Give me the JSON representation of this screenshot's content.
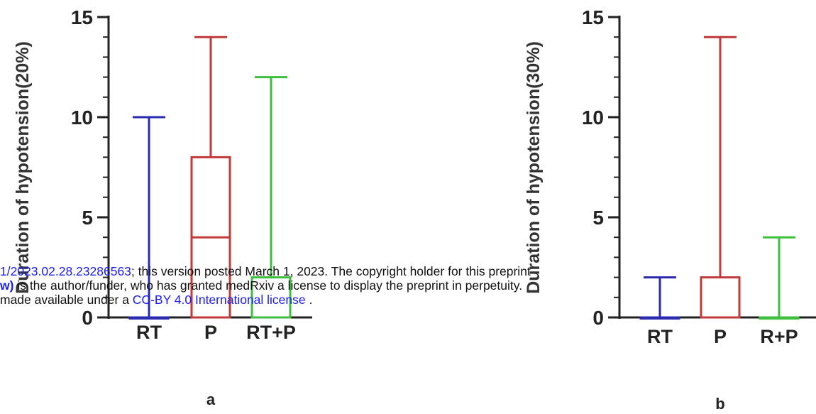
{
  "chart_data": [
    {
      "type": "box",
      "panel_label": "a",
      "ylabel": "Duration of hypotension(20%)",
      "ylim": [
        0,
        15
      ],
      "yticks": [
        0,
        5,
        10,
        15
      ],
      "categories": [
        "RT",
        "P",
        "RT+P"
      ],
      "boxes": [
        {
          "category": "RT",
          "color": "#2b2bb0",
          "min": 0,
          "q1": 0,
          "median": 0,
          "q3": 0,
          "max": 10
        },
        {
          "category": "P",
          "color": "#c03a3a",
          "min": 0,
          "q1": 0,
          "median": 4,
          "q3": 8,
          "max": 14
        },
        {
          "category": "RT+P",
          "color": "#3cbf3c",
          "min": 0,
          "q1": 0,
          "median": 0,
          "q3": 2,
          "max": 12
        }
      ]
    },
    {
      "type": "box",
      "panel_label": "b",
      "ylabel": "Duration of hypotension(30%)",
      "ylim": [
        0,
        15
      ],
      "yticks": [
        0,
        5,
        10,
        15
      ],
      "categories": [
        "RT",
        "P",
        "R+P"
      ],
      "boxes": [
        {
          "category": "RT",
          "color": "#2b2bb0",
          "min": 0,
          "q1": 0,
          "median": 0,
          "q3": 0,
          "max": 2
        },
        {
          "category": "P",
          "color": "#c03a3a",
          "min": 0,
          "q1": 0,
          "median": 0,
          "q3": 2,
          "max": 14
        },
        {
          "category": "R+P",
          "color": "#3cbf3c",
          "min": 0,
          "q1": 0,
          "median": 0,
          "q3": 0,
          "max": 4
        }
      ]
    }
  ],
  "stamp": {
    "line1_link": "1/2023.02.28.23286563",
    "line1_text": "; this version posted March 1, 2023. The copyright holder for this preprint",
    "line2_link": "w)",
    "line2_text": " is the author/funder, who has granted medRxiv a license to display the preprint in perpetuity.",
    "line3_text": "made available under a ",
    "line3_link": "CC-BY 4.0 International license",
    "line3_end": " ."
  }
}
